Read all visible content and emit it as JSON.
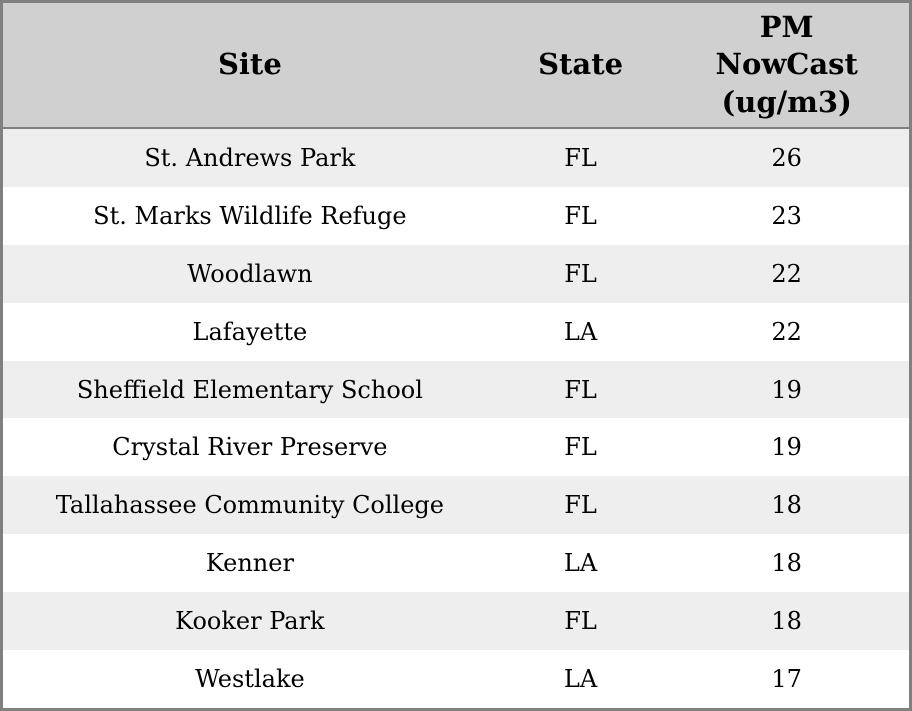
{
  "table": {
    "columns": [
      {
        "id": "site",
        "label": "Site"
      },
      {
        "id": "state",
        "label": "State"
      },
      {
        "id": "pm",
        "label": "PM\nNowCast\n(ug/m3)"
      }
    ],
    "rows": [
      {
        "site": "St. Andrews Park",
        "state": "FL",
        "pm": "26"
      },
      {
        "site": "St. Marks Wildlife Refuge",
        "state": "FL",
        "pm": "23"
      },
      {
        "site": "Woodlawn",
        "state": "FL",
        "pm": "22"
      },
      {
        "site": "Lafayette",
        "state": "LA",
        "pm": "22"
      },
      {
        "site": "Sheffield Elementary School",
        "state": "FL",
        "pm": "19"
      },
      {
        "site": "Crystal River Preserve",
        "state": "FL",
        "pm": "19"
      },
      {
        "site": "Tallahassee Community College",
        "state": "FL",
        "pm": "18"
      },
      {
        "site": "Kenner",
        "state": "LA",
        "pm": "18"
      },
      {
        "site": "Kooker Park",
        "state": "FL",
        "pm": "18"
      },
      {
        "site": "Westlake",
        "state": "LA",
        "pm": "17"
      }
    ],
    "colors": {
      "border": "#808080",
      "header_bg": "#d0d0d0",
      "row_odd_bg": "#eeeeee",
      "row_even_bg": "#ffffff",
      "text": "#000000"
    }
  },
  "chart_data": {
    "type": "table",
    "title": "",
    "columns": [
      "Site",
      "State",
      "PM NowCast (ug/m3)"
    ],
    "rows": [
      [
        "St. Andrews Park",
        "FL",
        26
      ],
      [
        "St. Marks Wildlife Refuge",
        "FL",
        23
      ],
      [
        "Woodlawn",
        "FL",
        22
      ],
      [
        "Lafayette",
        "LA",
        22
      ],
      [
        "Sheffield Elementary School",
        "FL",
        19
      ],
      [
        "Crystal River Preserve",
        "FL",
        19
      ],
      [
        "Tallahassee Community College",
        "FL",
        18
      ],
      [
        "Kenner",
        "LA",
        18
      ],
      [
        "Kooker Park",
        "FL",
        18
      ],
      [
        "Westlake",
        "LA",
        17
      ]
    ],
    "layout_hints": {
      "striped_rows": true,
      "header_background": "#d0d0d0",
      "alignment": "center"
    }
  }
}
